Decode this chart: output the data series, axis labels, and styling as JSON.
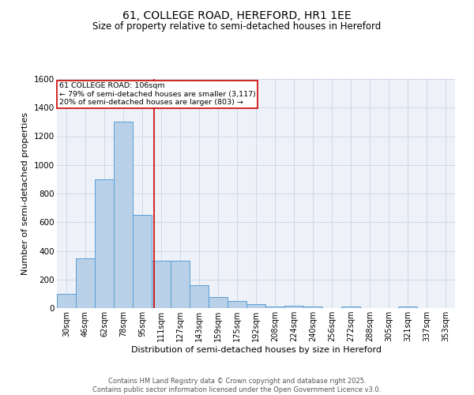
{
  "title": "61, COLLEGE ROAD, HEREFORD, HR1 1EE",
  "subtitle": "Size of property relative to semi-detached houses in Hereford",
  "xlabel": "Distribution of semi-detached houses by size in Hereford",
  "ylabel": "Number of semi-detached properties",
  "bar_labels": [
    "30sqm",
    "46sqm",
    "62sqm",
    "78sqm",
    "95sqm",
    "111sqm",
    "127sqm",
    "143sqm",
    "159sqm",
    "175sqm",
    "192sqm",
    "208sqm",
    "224sqm",
    "240sqm",
    "256sqm",
    "272sqm",
    "288sqm",
    "305sqm",
    "321sqm",
    "337sqm",
    "353sqm"
  ],
  "bar_values": [
    100,
    350,
    900,
    1300,
    650,
    330,
    330,
    160,
    80,
    50,
    25,
    10,
    15,
    10,
    0,
    10,
    0,
    0,
    10,
    0,
    0
  ],
  "property_line_index": 4.625,
  "annotation_text": "61 COLLEGE ROAD: 106sqm\n← 79% of semi-detached houses are smaller (3,117)\n20% of semi-detached houses are larger (803) →",
  "bar_color": "#b8d0e8",
  "bar_edge_color": "#5a9fd4",
  "line_color": "#cc0000",
  "background_color": "#eef2f8",
  "grid_color": "#c8d4e4",
  "annotation_box_color": "#ffffff",
  "annotation_box_edge": "#cc0000",
  "footer_text": "Contains HM Land Registry data © Crown copyright and database right 2025.\nContains public sector information licensed under the Open Government Licence v3.0.",
  "ylim": [
    0,
    1600
  ],
  "yticks": [
    0,
    200,
    400,
    600,
    800,
    1000,
    1200,
    1400,
    1600
  ],
  "title_fontsize": 10,
  "subtitle_fontsize": 8.5,
  "tick_fontsize": 7,
  "label_fontsize": 8,
  "footer_fontsize": 6
}
